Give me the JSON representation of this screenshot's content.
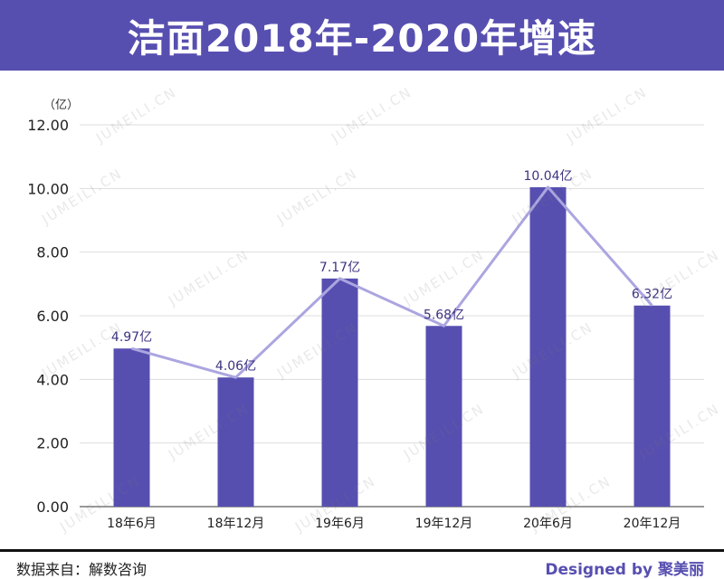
{
  "title": "洁面2018年-2020年增速",
  "unit_label": "（亿）",
  "source_label": "数据来自：解数咨询",
  "designed_label": "Designed by 聚美丽",
  "watermark_text": "JUMEILI.CN",
  "colors": {
    "primary": "#574fb0",
    "bar": "#574fb0",
    "line": "#aba6e0",
    "grid": "#dddddd"
  },
  "chart_data": {
    "type": "bar",
    "categories": [
      "18年6月",
      "18年12月",
      "19年6月",
      "19年12月",
      "20年6月",
      "20年12月"
    ],
    "values": [
      4.97,
      4.06,
      7.17,
      5.68,
      10.04,
      6.32
    ],
    "data_labels": [
      "4.97亿",
      "4.06亿",
      "7.17亿",
      "5.68亿",
      "10.04亿",
      "6.32亿"
    ],
    "overlay_line": true,
    "ylim": [
      0,
      12
    ],
    "yticks": [
      "0.00",
      "2.00",
      "4.00",
      "6.00",
      "8.00",
      "10.00",
      "12.00"
    ],
    "grid": true
  }
}
